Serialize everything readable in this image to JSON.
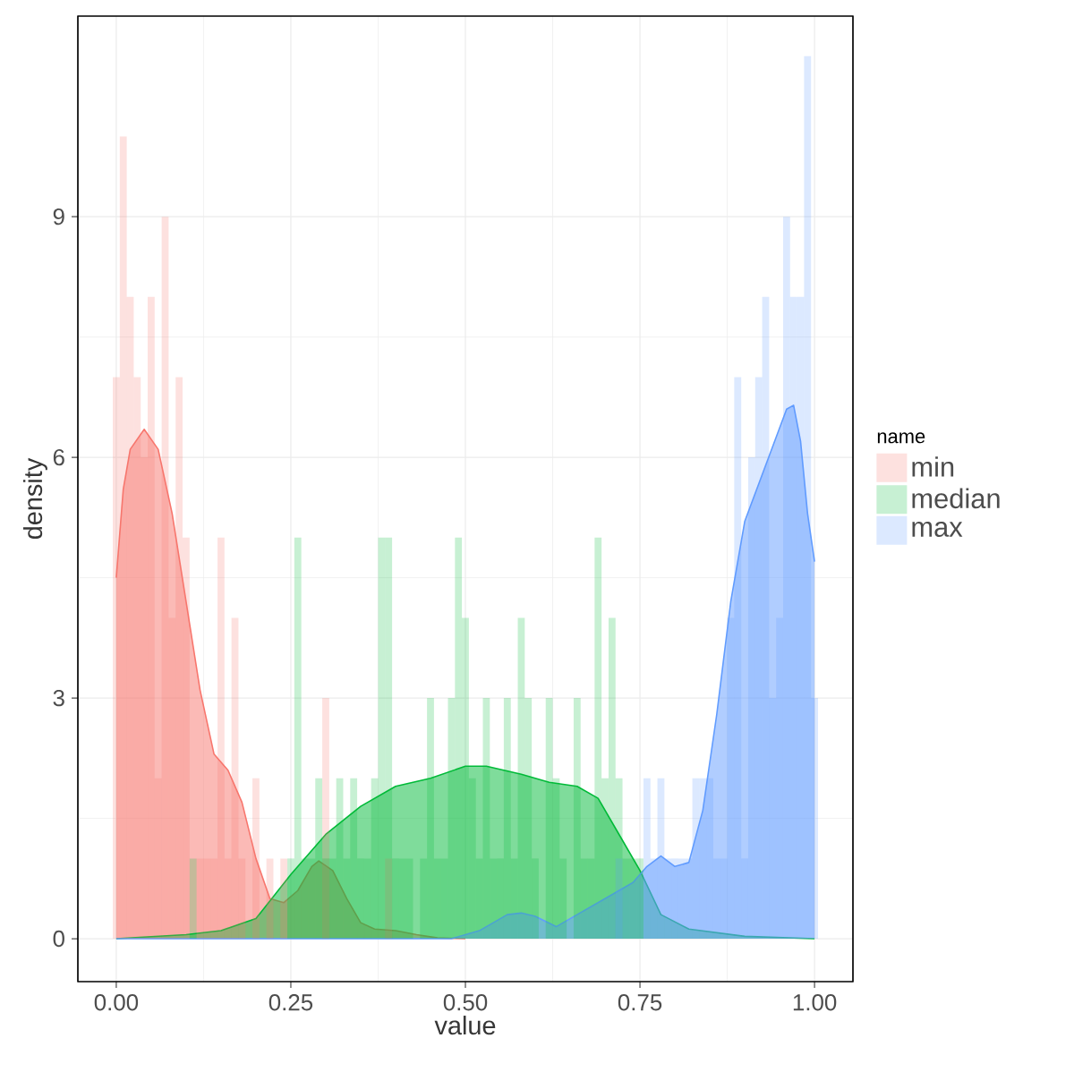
{
  "chart_data": {
    "type": "histogram",
    "xlabel": "value",
    "ylabel": "density",
    "legend_title": "name",
    "legend": "right",
    "grid": true,
    "xlim": [
      -0.055,
      1.055
    ],
    "ylim": [
      -0.535,
      11.5
    ],
    "xticks": [
      {
        "value": 0,
        "label": "0.00"
      },
      {
        "value": 0.25,
        "label": "0.25"
      },
      {
        "value": 0.5,
        "label": "0.50"
      },
      {
        "value": 0.75,
        "label": "0.75"
      },
      {
        "value": 1,
        "label": "1.00"
      }
    ],
    "yticks": [
      0,
      3,
      6,
      9
    ],
    "bins": [
      -0.005,
      0.005,
      0.015,
      0.025,
      0.035,
      0.045,
      0.055,
      0.065,
      0.075,
      0.085,
      0.095,
      0.105,
      0.115,
      0.125,
      0.135,
      0.145,
      0.155,
      0.165,
      0.175,
      0.185,
      0.195,
      0.205,
      0.215,
      0.225,
      0.235,
      0.245,
      0.255,
      0.265,
      0.275,
      0.285,
      0.295,
      0.305,
      0.315,
      0.325,
      0.335,
      0.345,
      0.355,
      0.365,
      0.375,
      0.385,
      0.395,
      0.405,
      0.415,
      0.425,
      0.435,
      0.445,
      0.455,
      0.465,
      0.475,
      0.485,
      0.495,
      0.505,
      0.515,
      0.525,
      0.535,
      0.545,
      0.555,
      0.565,
      0.575,
      0.585,
      0.595,
      0.605,
      0.615,
      0.625,
      0.635,
      0.645,
      0.655,
      0.665,
      0.675,
      0.685,
      0.695,
      0.705,
      0.715,
      0.725,
      0.735,
      0.745,
      0.755,
      0.765,
      0.775,
      0.785,
      0.795,
      0.805,
      0.815,
      0.825,
      0.835,
      0.845,
      0.855,
      0.865,
      0.875,
      0.885,
      0.895,
      0.905,
      0.915,
      0.925,
      0.935,
      0.945,
      0.955,
      0.965,
      0.975,
      0.985,
      0.995,
      1.005
    ],
    "series": [
      {
        "name": "min",
        "color": "#F8766D",
        "values": [
          7,
          10,
          8,
          7,
          6,
          8,
          2,
          9,
          4,
          7,
          5,
          0,
          1,
          1,
          1,
          5,
          1,
          4,
          1,
          0,
          2,
          0,
          1,
          0,
          1,
          0,
          0,
          0,
          0,
          0,
          3,
          0,
          0,
          0,
          0,
          0,
          0,
          0,
          0,
          1,
          0,
          0,
          0,
          0,
          0,
          0,
          0,
          0,
          0,
          0,
          0,
          0,
          0,
          0,
          0,
          0,
          0,
          0,
          0,
          0,
          0,
          0,
          0,
          0,
          0,
          0,
          0,
          0,
          0,
          0,
          0,
          0,
          0,
          0,
          0,
          0,
          0,
          0,
          0,
          0,
          0,
          0,
          0,
          0,
          0,
          0,
          0,
          0,
          0,
          0,
          0,
          0,
          0,
          0,
          0,
          0,
          0,
          0,
          0,
          0,
          0
        ]
      },
      {
        "name": "median",
        "color": "#00BA38",
        "values": [
          0,
          0,
          0,
          0,
          0,
          0,
          0,
          0,
          0,
          0,
          0,
          1,
          0,
          0,
          0,
          0,
          0,
          0,
          0,
          0,
          0,
          0,
          0,
          0,
          0,
          1,
          5,
          1,
          1,
          2,
          1,
          1,
          2,
          1,
          2,
          1,
          1,
          2,
          5,
          5,
          1,
          1,
          1,
          0,
          1,
          3,
          1,
          1,
          3,
          5,
          4,
          2,
          1,
          3,
          1,
          1,
          3,
          1,
          4,
          3,
          1,
          0,
          3,
          2,
          1,
          0,
          3,
          1,
          1,
          5,
          2,
          4,
          2,
          1,
          1,
          1,
          0,
          0,
          0,
          0,
          0,
          0,
          0,
          0,
          0,
          0,
          0,
          0,
          0,
          0,
          0,
          0,
          0,
          0,
          0,
          0,
          0,
          0,
          0,
          0,
          0
        ]
      },
      {
        "name": "max",
        "color": "#619CFF",
        "values": [
          0,
          0,
          0,
          0,
          0,
          0,
          0,
          0,
          0,
          0,
          0,
          0,
          0,
          0,
          0,
          0,
          0,
          0,
          0,
          0,
          0,
          0,
          0,
          0,
          0,
          0,
          0,
          0,
          0,
          0,
          0,
          0,
          0,
          0,
          0,
          0,
          0,
          0,
          0,
          0,
          0,
          0,
          0,
          0,
          0,
          0,
          0,
          0,
          0,
          0,
          0,
          0,
          0,
          0,
          0,
          0,
          0,
          0,
          0,
          0,
          0,
          0,
          0,
          0,
          0,
          0,
          0,
          0,
          0,
          0,
          0,
          0,
          1,
          0,
          0,
          0,
          2,
          1,
          2,
          1,
          1,
          1,
          1,
          2,
          2,
          2,
          1,
          1,
          4,
          7,
          1,
          6,
          7,
          8,
          3,
          4,
          9,
          8,
          8,
          11,
          3
        ]
      },
      {
        "type": "area",
        "color": "#F8766D",
        "x": [
          0,
          0.01,
          0.02,
          0.04,
          0.06,
          0.08,
          0.1,
          0.12,
          0.14,
          0.16,
          0.18,
          0.2,
          0.22,
          0.24,
          0.26,
          0.28,
          0.29,
          0.31,
          0.33,
          0.35,
          0.37,
          0.4,
          0.43,
          0.46,
          0.5
        ],
        "values": [
          4.5,
          5.6,
          6.1,
          6.35,
          6.1,
          5.3,
          4.2,
          3.1,
          2.3,
          2.1,
          1.7,
          1.0,
          0.5,
          0.45,
          0.6,
          0.9,
          0.97,
          0.85,
          0.5,
          0.2,
          0.12,
          0.1,
          0.05,
          0.01,
          0
        ]
      },
      {
        "type": "area",
        "color": "#00BA38",
        "x": [
          0,
          0.1,
          0.15,
          0.2,
          0.25,
          0.3,
          0.35,
          0.4,
          0.45,
          0.5,
          0.53,
          0.58,
          0.62,
          0.66,
          0.69,
          0.72,
          0.75,
          0.78,
          0.82,
          0.9,
          1
        ],
        "values": [
          0,
          0.05,
          0.1,
          0.25,
          0.8,
          1.3,
          1.65,
          1.9,
          2.0,
          2.15,
          2.15,
          2.05,
          1.95,
          1.9,
          1.75,
          1.3,
          0.85,
          0.3,
          0.12,
          0.03,
          0
        ]
      },
      {
        "type": "area",
        "color": "#619CFF",
        "x": [
          0,
          0.48,
          0.52,
          0.56,
          0.58,
          0.6,
          0.63,
          0.66,
          0.7,
          0.74,
          0.76,
          0.78,
          0.8,
          0.82,
          0.84,
          0.86,
          0.88,
          0.9,
          0.93,
          0.96,
          0.97,
          0.98,
          0.99,
          1
        ],
        "values": [
          0,
          0,
          0.1,
          0.3,
          0.32,
          0.28,
          0.15,
          0.3,
          0.5,
          0.7,
          0.9,
          1.03,
          0.9,
          0.95,
          1.6,
          2.8,
          4.2,
          5.2,
          5.9,
          6.6,
          6.65,
          6.2,
          5.3,
          4.7
        ]
      }
    ]
  }
}
